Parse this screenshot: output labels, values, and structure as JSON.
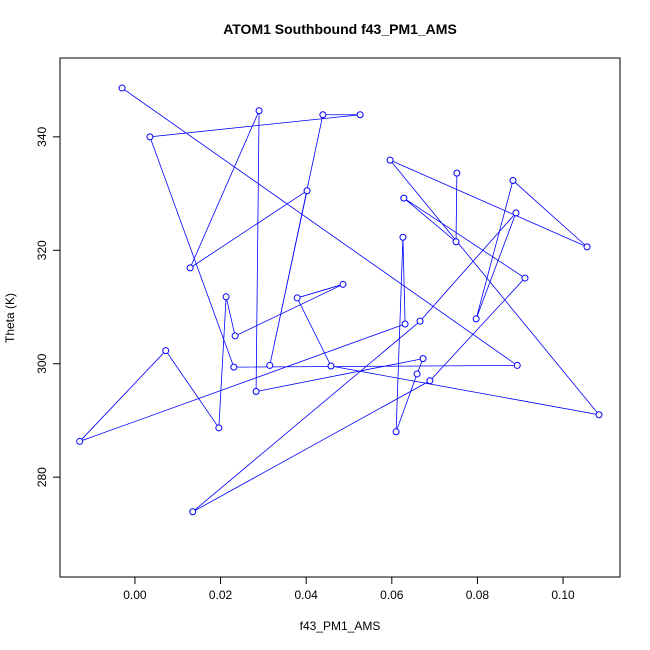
{
  "chart_data": {
    "type": "line",
    "title": "ATOM1 Southbound f43_PM1_AMS",
    "x_label": "f43_PM1_AMS",
    "y_label": "Theta (K)",
    "xlim": [
      -0.0175,
      0.1133
    ],
    "ylim": [
      262.4,
      353.9
    ],
    "xticks": [
      {
        "value": 0,
        "label": "0.00"
      },
      {
        "value": 0.02,
        "label": "0.02"
      },
      {
        "value": 0.04,
        "label": "0.04"
      },
      {
        "value": 0.06,
        "label": "0.06"
      },
      {
        "value": 0.08,
        "label": "0.08"
      },
      {
        "value": 0.1,
        "label": "0.10"
      }
    ],
    "yticks": [
      280,
      300,
      320,
      340
    ],
    "series": [
      {
        "color": "#0000ff",
        "x": [
          -0.003,
          0.0893,
          0.0231,
          0.0035,
          0.0526,
          0.0439,
          0.0315,
          0.0402,
          0.0129,
          0.029,
          0.0283,
          0.0673,
          0.0659,
          0.061,
          0.0626,
          0.0631,
          -0.0129,
          0.0072,
          0.0196,
          0.0213,
          0.0234,
          0.0486,
          0.0379,
          0.0458,
          0.1084,
          0.0596,
          0.1056,
          0.0883,
          0.0797,
          0.089,
          0.0666,
          0.0135,
          0.0689,
          0.0911,
          0.0628,
          0.075,
          0.0752
        ],
        "values": [
          348.6,
          299.7,
          299.4,
          340.0,
          343.9,
          343.9,
          299.7,
          330.5,
          316.9,
          344.6,
          295.1,
          300.9,
          298.2,
          288.0,
          322.3,
          307.0,
          286.3,
          302.3,
          288.7,
          311.8,
          304.9,
          314.0,
          311.6,
          299.6,
          291.0,
          335.9,
          320.6,
          332.3,
          307.9,
          326.6,
          307.5,
          273.9,
          297.0,
          315.1,
          329.2,
          321.5,
          333.6
        ]
      }
    ]
  }
}
